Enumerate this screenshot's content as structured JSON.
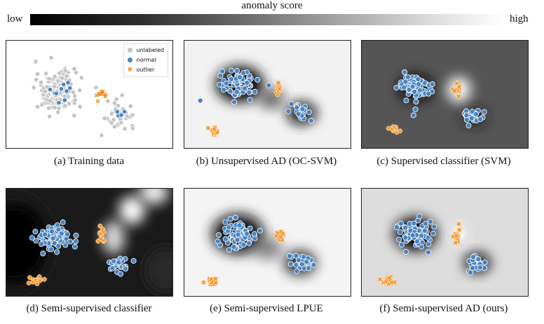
{
  "colorbar": {
    "title": "anomaly score",
    "low": "low",
    "high": "high"
  },
  "legend": {
    "unlabeled": "unlabeled",
    "normal": "normal",
    "outlier": "outlier"
  },
  "colors": {
    "unlabeled": "#c4c4c4",
    "normal": "#4a84c0",
    "outlier": "#f28e1c"
  },
  "chart_data": [
    {
      "type": "scatter",
      "id": "a",
      "caption": "(a) Training data",
      "background": "none",
      "xlim": [
        0,
        10
      ],
      "ylim": [
        0,
        6
      ],
      "clusters": [
        {
          "kind": "unlabeled",
          "center": [
            3.0,
            3.2
          ],
          "spread": [
            1.1,
            0.75
          ],
          "n": 190
        },
        {
          "kind": "unlabeled",
          "center": [
            6.8,
            1.95
          ],
          "spread": [
            0.75,
            0.45
          ],
          "n": 45
        },
        {
          "kind": "normal",
          "center": [
            3.3,
            3.2
          ],
          "spread": [
            0.7,
            0.4
          ],
          "n": 10
        },
        {
          "kind": "normal",
          "center": [
            6.8,
            1.9
          ],
          "spread": [
            0.25,
            0.2
          ],
          "n": 7
        },
        {
          "kind": "outlier",
          "center": [
            5.6,
            3.0
          ],
          "spread": [
            0.35,
            0.2
          ],
          "n": 9
        }
      ]
    },
    {
      "type": "scatter",
      "id": "b",
      "caption": "(b) Unsupervised AD (OC-SVM)",
      "background": "unsupervised",
      "xlim": [
        0,
        10
      ],
      "ylim": [
        0,
        6
      ],
      "clusters": [
        {
          "kind": "normal",
          "center": [
            3.3,
            3.6
          ],
          "spread": [
            1.0,
            0.5
          ],
          "n": 75
        },
        {
          "kind": "normal",
          "center": [
            7.0,
            2.0
          ],
          "spread": [
            0.6,
            0.3
          ],
          "n": 25
        },
        {
          "kind": "outlier",
          "center": [
            5.6,
            3.3
          ],
          "spread": [
            0.15,
            0.25
          ],
          "n": 14
        },
        {
          "kind": "outlier",
          "center": [
            1.8,
            1.0
          ],
          "spread": [
            0.4,
            0.15
          ],
          "n": 12
        }
      ]
    },
    {
      "type": "scatter",
      "id": "c",
      "caption": "(c) Supervised classifier (SVM)",
      "background": "supervised",
      "xlim": [
        0,
        10
      ],
      "ylim": [
        0,
        6
      ],
      "clusters": [
        {
          "kind": "normal",
          "center": [
            3.2,
            3.4
          ],
          "spread": [
            0.9,
            0.5
          ],
          "n": 75
        },
        {
          "kind": "normal",
          "center": [
            6.7,
            1.8
          ],
          "spread": [
            0.6,
            0.3
          ],
          "n": 25
        },
        {
          "kind": "outlier",
          "center": [
            5.7,
            3.3
          ],
          "spread": [
            0.2,
            0.3
          ],
          "n": 14
        },
        {
          "kind": "outlier",
          "center": [
            1.8,
            1.1
          ],
          "spread": [
            0.4,
            0.15
          ],
          "n": 12
        }
      ]
    },
    {
      "type": "scatter",
      "id": "d",
      "caption": "(d) Semi-supervised classifier",
      "background": "semi-classifier",
      "xlim": [
        0,
        10
      ],
      "ylim": [
        0,
        6
      ],
      "clusters": [
        {
          "kind": "normal",
          "center": [
            2.9,
            3.4
          ],
          "spread": [
            1.0,
            0.5
          ],
          "n": 75
        },
        {
          "kind": "normal",
          "center": [
            6.7,
            1.8
          ],
          "spread": [
            0.6,
            0.3
          ],
          "n": 25
        },
        {
          "kind": "outlier",
          "center": [
            5.7,
            3.3
          ],
          "spread": [
            0.2,
            0.3
          ],
          "n": 14
        },
        {
          "kind": "outlier",
          "center": [
            1.7,
            1.0
          ],
          "spread": [
            0.4,
            0.15
          ],
          "n": 12
        }
      ]
    },
    {
      "type": "scatter",
      "id": "e",
      "caption": "(e) Semi-supervised LPUE",
      "background": "lpue",
      "xlim": [
        0,
        10
      ],
      "ylim": [
        0,
        6
      ],
      "clusters": [
        {
          "kind": "normal",
          "center": [
            3.2,
            3.5
          ],
          "spread": [
            0.9,
            0.5
          ],
          "n": 75
        },
        {
          "kind": "normal",
          "center": [
            6.9,
            1.9
          ],
          "spread": [
            0.6,
            0.3
          ],
          "n": 25
        },
        {
          "kind": "outlier",
          "center": [
            5.7,
            3.4
          ],
          "spread": [
            0.2,
            0.3
          ],
          "n": 14
        },
        {
          "kind": "outlier",
          "center": [
            1.5,
            0.9
          ],
          "spread": [
            0.4,
            0.15
          ],
          "n": 12
        }
      ]
    },
    {
      "type": "scatter",
      "id": "f",
      "caption": "(f) Semi-supervised AD (ours)",
      "background": "semi-ad",
      "xlim": [
        0,
        10
      ],
      "ylim": [
        0,
        6
      ],
      "clusters": [
        {
          "kind": "normal",
          "center": [
            3.2,
            3.5
          ],
          "spread": [
            0.9,
            0.5
          ],
          "n": 75
        },
        {
          "kind": "normal",
          "center": [
            6.9,
            1.9
          ],
          "spread": [
            0.6,
            0.3
          ],
          "n": 25
        },
        {
          "kind": "outlier",
          "center": [
            5.7,
            3.4
          ],
          "spread": [
            0.2,
            0.3
          ],
          "n": 14
        },
        {
          "kind": "outlier",
          "center": [
            1.5,
            0.9
          ],
          "spread": [
            0.4,
            0.15
          ],
          "n": 12
        }
      ]
    }
  ]
}
